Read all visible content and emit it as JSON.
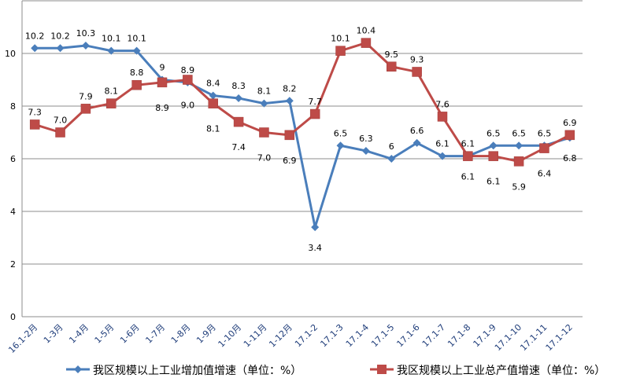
{
  "chart_data": {
    "type": "line",
    "title": "",
    "xlabel": "",
    "ylabel": "",
    "ylim": [
      0,
      12
    ],
    "yticks": [
      0,
      2,
      4,
      6,
      8,
      10,
      12
    ],
    "ytick_labels": [
      "0",
      "2",
      "4",
      "6",
      "8",
      "10",
      ""
    ],
    "grid": true,
    "legend_position": "bottom",
    "categories": [
      "16.1-2月",
      "1-3月",
      "1-4月",
      "1-5月",
      "1-6月",
      "1-7月",
      "1-8月",
      "1-9月",
      "1-10月",
      "1-11月",
      "1-12月",
      "17.1-2",
      "17.1-3",
      "17.1-4",
      "17.1-5",
      "17.1-6",
      "17.1-7",
      "17.1-8",
      "17.1-9",
      "17.1-10",
      "17.1-11",
      "17.1-12"
    ],
    "series": [
      {
        "name": "我区规模以上工业增加值增速（单位：%）",
        "color": "#4a7ebb",
        "marker": "diamond",
        "values": [
          10.2,
          10.2,
          10.3,
          10.1,
          10.1,
          9.0,
          8.9,
          8.4,
          8.3,
          8.1,
          8.2,
          3.4,
          6.5,
          6.3,
          6.0,
          6.6,
          6.1,
          6.1,
          6.5,
          6.5,
          6.5,
          6.8
        ],
        "labels": [
          "10.2",
          "10.2",
          "10.3",
          "10.1",
          "10.1",
          "9",
          "8.9",
          "8.4",
          "8.3",
          "8.1",
          "8.2",
          "3.4",
          "6.5",
          "6.3",
          "6",
          "6.6",
          "6.1",
          "6.1",
          "6.5",
          "6.5",
          "6.5",
          "6.8"
        ]
      },
      {
        "name": "我区规模以上工业总产值增速（单位：%）",
        "color": "#be4b48",
        "marker": "square",
        "values": [
          7.3,
          7.0,
          7.9,
          8.1,
          8.8,
          8.9,
          9.0,
          8.1,
          7.4,
          7.0,
          6.9,
          7.7,
          10.1,
          10.4,
          9.5,
          9.3,
          7.6,
          6.1,
          6.1,
          5.9,
          6.4,
          6.9
        ],
        "labels": [
          "7.3",
          "7.0",
          "7.9",
          "8.1",
          "8.8",
          "8.9",
          "9.0",
          "8.1",
          "7.4",
          "7.0",
          "6.9",
          "7.7",
          "10.1",
          "10.4",
          "9.5",
          "9.3",
          "7.6",
          "6.1",
          "6.1",
          "5.9",
          "6.4",
          "6.9"
        ]
      }
    ]
  }
}
